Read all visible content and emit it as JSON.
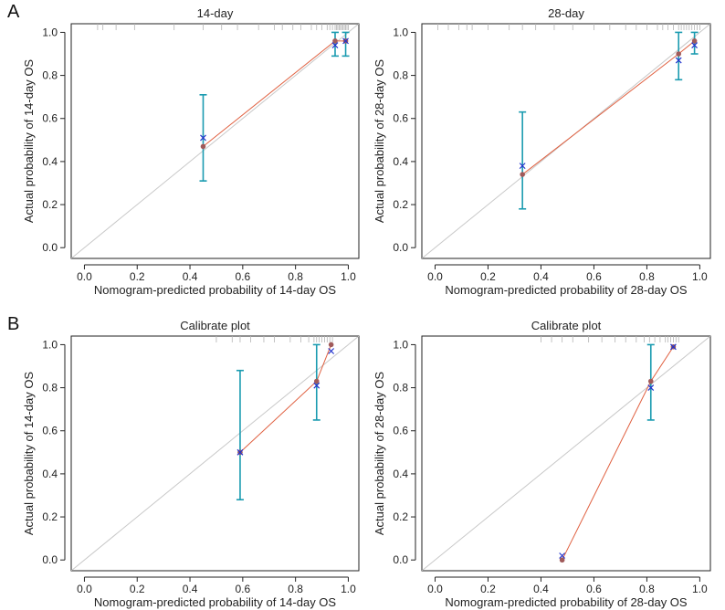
{
  "panel_labels": [
    "A",
    "B"
  ],
  "colors": {
    "ideal_line": "#c8c8c8",
    "apparent_line": "#e06040",
    "point_fill": "#a05a5a",
    "error_bar": "#1a9bb0",
    "bias_corrected_marker": "#2233cc",
    "rug": "#b4b4b4",
    "axis": "#222222"
  },
  "chart_data": [
    {
      "type": "scatter",
      "panel": "A",
      "title": "14-day",
      "xlabel": "Nomogram-predicted probability of 14-day OS",
      "ylabel": "Actual probability of 14-day OS",
      "xlim": [
        -0.05,
        1.04
      ],
      "ylim": [
        -0.05,
        1.04
      ],
      "xticks": [
        0.0,
        0.2,
        0.4,
        0.6,
        0.8,
        1.0
      ],
      "yticks": [
        0.0,
        0.2,
        0.4,
        0.6,
        0.8,
        1.0
      ],
      "tick_labels": [
        "0.0",
        "0.2",
        "0.4",
        "0.6",
        "0.8",
        "1.0"
      ],
      "x": [
        0.45,
        0.95,
        0.99
      ],
      "observed": [
        0.47,
        0.96,
        0.96
      ],
      "ci_lower": [
        0.31,
        0.89,
        0.89
      ],
      "ci_upper": [
        0.71,
        1.0,
        1.0
      ],
      "bias_corrected": [
        0.51,
        0.94,
        0.96
      ],
      "rug": [
        0.05,
        0.07,
        0.12,
        0.19,
        0.34,
        0.45,
        0.52,
        0.58,
        0.66,
        0.72,
        0.75,
        0.79,
        0.82,
        0.86,
        0.88,
        0.9,
        0.92,
        0.93,
        0.94,
        0.95,
        0.955,
        0.96,
        0.965,
        0.97,
        0.975,
        0.98,
        0.985,
        0.99,
        0.995,
        1.0
      ]
    },
    {
      "type": "scatter",
      "panel": "A",
      "title": "28-day",
      "xlabel": "Nomogram-predicted probability of 28-day OS",
      "ylabel": "Actual probability of 28-day OS",
      "xlim": [
        -0.05,
        1.04
      ],
      "ylim": [
        -0.05,
        1.04
      ],
      "xticks": [
        0.0,
        0.2,
        0.4,
        0.6,
        0.8,
        1.0
      ],
      "yticks": [
        0.0,
        0.2,
        0.4,
        0.6,
        0.8,
        1.0
      ],
      "tick_labels": [
        "0.0",
        "0.2",
        "0.4",
        "0.6",
        "0.8",
        "1.0"
      ],
      "x": [
        0.33,
        0.92,
        0.98
      ],
      "observed": [
        0.34,
        0.9,
        0.96
      ],
      "ci_lower": [
        0.18,
        0.78,
        0.9
      ],
      "ci_upper": [
        0.63,
        1.0,
        1.0
      ],
      "bias_corrected": [
        0.38,
        0.87,
        0.94
      ],
      "rug": [
        0.01,
        0.05,
        0.09,
        0.12,
        0.14,
        0.2,
        0.28,
        0.33,
        0.38,
        0.45,
        0.52,
        0.6,
        0.66,
        0.72,
        0.76,
        0.8,
        0.84,
        0.86,
        0.88,
        0.9,
        0.92,
        0.93,
        0.94,
        0.95,
        0.96,
        0.97,
        0.98,
        0.99,
        1.0
      ]
    },
    {
      "type": "scatter",
      "panel": "B",
      "title": "Calibrate plot",
      "xlabel": "Nomogram-predicted probability of 14-day OS",
      "ylabel": "Actual probability of 14-day OS",
      "xlim": [
        -0.05,
        1.04
      ],
      "ylim": [
        -0.05,
        1.04
      ],
      "xticks": [
        0.0,
        0.2,
        0.4,
        0.6,
        0.8,
        1.0
      ],
      "yticks": [
        0.0,
        0.2,
        0.4,
        0.6,
        0.8,
        1.0
      ],
      "tick_labels": [
        "0.0",
        "0.2",
        "0.4",
        "0.6",
        "0.8",
        "1.0"
      ],
      "x": [
        0.59,
        0.88,
        0.935
      ],
      "observed": [
        0.5,
        0.83,
        1.0
      ],
      "ci_lower": [
        0.28,
        0.65,
        1.0
      ],
      "ci_upper": [
        0.88,
        1.0,
        1.0
      ],
      "bias_corrected": [
        0.5,
        0.81,
        0.97
      ],
      "rug": [
        0.5,
        0.56,
        0.59,
        0.63,
        0.68,
        0.72,
        0.78,
        0.82,
        0.85,
        0.87,
        0.88,
        0.89,
        0.9,
        0.91,
        0.92,
        0.93,
        0.94
      ]
    },
    {
      "type": "scatter",
      "panel": "B",
      "title": "Calibrate plot",
      "xlabel": "Nomogram-predicted probability of 28-day OS",
      "ylabel": "Actual probability of 28-day OS",
      "xlim": [
        -0.05,
        1.04
      ],
      "ylim": [
        -0.05,
        1.04
      ],
      "xticks": [
        0.0,
        0.2,
        0.4,
        0.6,
        0.8,
        1.0
      ],
      "yticks": [
        0.0,
        0.2,
        0.4,
        0.6,
        0.8,
        1.0
      ],
      "tick_labels": [
        "0.0",
        "0.2",
        "0.4",
        "0.6",
        "0.8",
        "1.0"
      ],
      "x": [
        0.48,
        0.815,
        0.9
      ],
      "observed": [
        0.0,
        0.83,
        0.99
      ],
      "ci_lower": [
        0.0,
        0.65,
        1.0
      ],
      "ci_upper": [
        0.0,
        1.0,
        1.0
      ],
      "bias_corrected": [
        0.02,
        0.8,
        0.99
      ],
      "rug": [
        0.4,
        0.44,
        0.48,
        0.52,
        0.58,
        0.63,
        0.68,
        0.72,
        0.76,
        0.79,
        0.81,
        0.83,
        0.85,
        0.87,
        0.88,
        0.89,
        0.9,
        0.91,
        0.92
      ]
    }
  ]
}
